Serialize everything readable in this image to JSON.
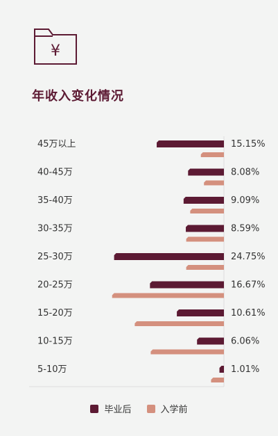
{
  "title": "年收入变化情况",
  "icon": "folder-yen-icon",
  "colors": {
    "after": "#5c1a33",
    "before": "#d4907e",
    "axis": "#dddddd"
  },
  "chart_data": {
    "type": "bar",
    "orientation": "horizontal",
    "categories": [
      "45万以上",
      "40-45万",
      "35-40万",
      "30-35万",
      "25-30万",
      "20-25万",
      "15-20万",
      "10-15万",
      "5-10万"
    ],
    "series": [
      {
        "name": "毕业后",
        "values": [
          15.15,
          8.08,
          9.09,
          8.59,
          24.75,
          16.67,
          10.61,
          6.06,
          1.01
        ],
        "labels": [
          "15.15%",
          "8.08%",
          "9.09%",
          "8.59%",
          "24.75%",
          "16.67%",
          "10.61%",
          "6.06%",
          "1.01%"
        ]
      },
      {
        "name": "入学前",
        "values": [
          5.2,
          4.5,
          7.6,
          8.5,
          8.5,
          25.2,
          20.1,
          16.5,
          2.9
        ]
      }
    ],
    "title": "年收入变化情况",
    "xlabel": "",
    "ylabel": "",
    "legend": "bottom",
    "grid": false
  }
}
